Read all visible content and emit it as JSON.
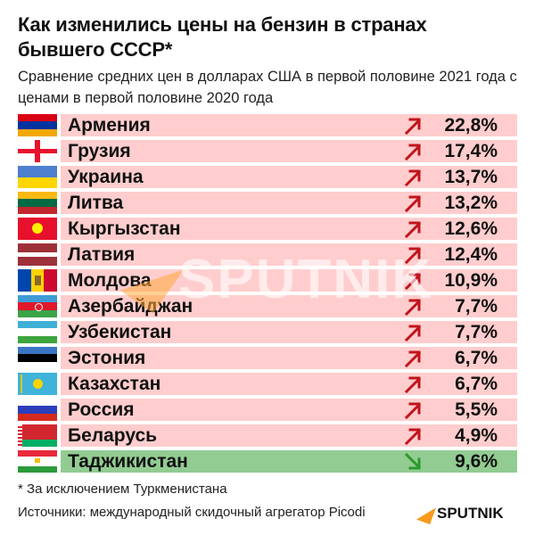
{
  "header": {
    "title": "Как изменились цены на бензин в странах бывшего СССР*",
    "subtitle": "Сравнение средних цен в долларах США в первой половине 2021 года с ценами в первой половине 2020 года"
  },
  "rows": [
    {
      "country": "Армения",
      "value": "22,8%",
      "direction": "up"
    },
    {
      "country": "Грузия",
      "value": "17,4%",
      "direction": "up"
    },
    {
      "country": "Украина",
      "value": "13,7%",
      "direction": "up"
    },
    {
      "country": "Литва",
      "value": "13,2%",
      "direction": "up"
    },
    {
      "country": "Кыргызстан",
      "value": "12,6%",
      "direction": "up"
    },
    {
      "country": "Латвия",
      "value": "12,4%",
      "direction": "up"
    },
    {
      "country": "Молдова",
      "value": "10,9%",
      "direction": "up"
    },
    {
      "country": "Азербайджан",
      "value": "7,7%",
      "direction": "up"
    },
    {
      "country": "Узбекистан",
      "value": "7,7%",
      "direction": "up"
    },
    {
      "country": "Эстония",
      "value": "6,7%",
      "direction": "up"
    },
    {
      "country": "Казахстан",
      "value": "6,7%",
      "direction": "up"
    },
    {
      "country": "Россия",
      "value": "5,5%",
      "direction": "up"
    },
    {
      "country": "Беларусь",
      "value": "4,9%",
      "direction": "up"
    },
    {
      "country": "Таджикистан",
      "value": "9,6%",
      "direction": "down"
    }
  ],
  "footer": {
    "note": "* За исключением Туркменистана",
    "source": "Источники: международный скидочный агрегатор Picodi",
    "logo": "SPUTNIK"
  },
  "watermark": "SPUTNIK",
  "colors": {
    "up_bar": "#ffcdcd",
    "down_bar": "#92cc92",
    "up_arrow": "#c0141c",
    "down_arrow": "#2a9a2a"
  },
  "chart_data": {
    "type": "table",
    "title": "Как изменились цены на бензин в странах бывшего СССР*",
    "subtitle": "Сравнение средних цен в долларах США в первой половине 2021 года с ценами в первой половине 2020 года",
    "categories": [
      "Армения",
      "Грузия",
      "Украина",
      "Литва",
      "Кыргызстан",
      "Латвия",
      "Молдова",
      "Азербайджан",
      "Узбекистан",
      "Эстония",
      "Казахстан",
      "Россия",
      "Беларусь",
      "Таджикистан"
    ],
    "values": [
      22.8,
      17.4,
      13.7,
      13.2,
      12.6,
      12.4,
      10.9,
      7.7,
      7.7,
      6.7,
      6.7,
      5.5,
      4.9,
      -9.6
    ],
    "unit": "%",
    "annotations": [
      "* За исключением Туркменистана",
      "Источники: международный скидочный агрегатор Picodi"
    ]
  }
}
